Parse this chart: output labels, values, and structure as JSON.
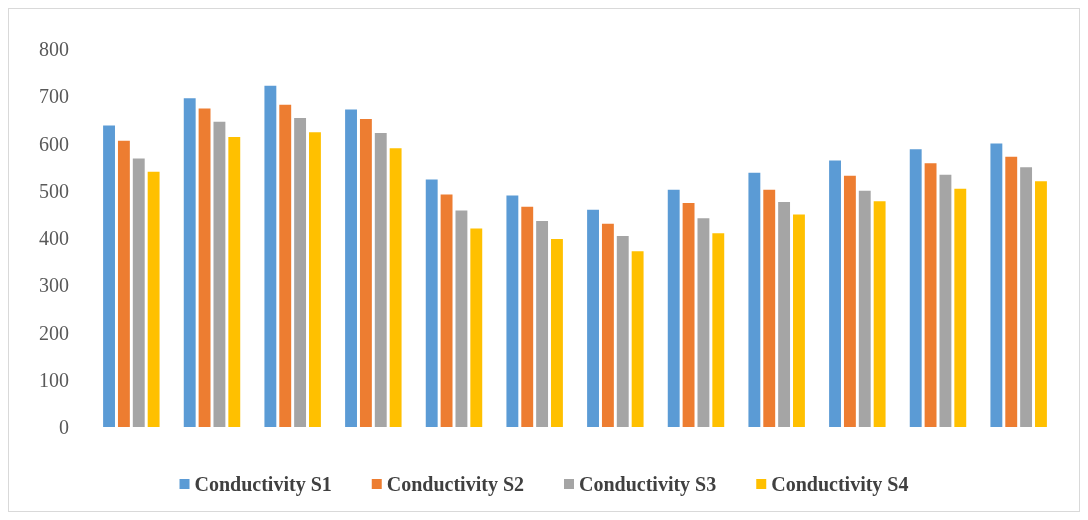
{
  "chart_data": {
    "type": "bar",
    "categories": [
      null,
      null,
      null,
      null,
      null,
      null,
      null,
      null,
      null,
      null,
      null,
      null
    ],
    "series": [
      {
        "name": "Conductivity S1",
        "color": "#5b9bd5",
        "values": [
          638,
          696,
          722,
          672,
          524,
          490,
          460,
          502,
          538,
          564,
          588,
          600
        ]
      },
      {
        "name": "Conductivity S2",
        "color": "#ed7d31",
        "values": [
          606,
          674,
          682,
          652,
          492,
          466,
          430,
          474,
          502,
          532,
          558,
          572
        ]
      },
      {
        "name": "Conductivity S3",
        "color": "#a5a5a5",
        "values": [
          568,
          646,
          654,
          622,
          458,
          436,
          404,
          442,
          476,
          500,
          534,
          550
        ]
      },
      {
        "name": "Conductivity S4",
        "color": "#ffc000",
        "values": [
          540,
          614,
          624,
          590,
          420,
          398,
          372,
          410,
          450,
          478,
          504,
          520
        ]
      }
    ],
    "ylim": [
      0,
      800
    ],
    "yticks": [
      0,
      100,
      200,
      300,
      400,
      500,
      600,
      700,
      800
    ],
    "grid": false,
    "legend": "bottom"
  }
}
